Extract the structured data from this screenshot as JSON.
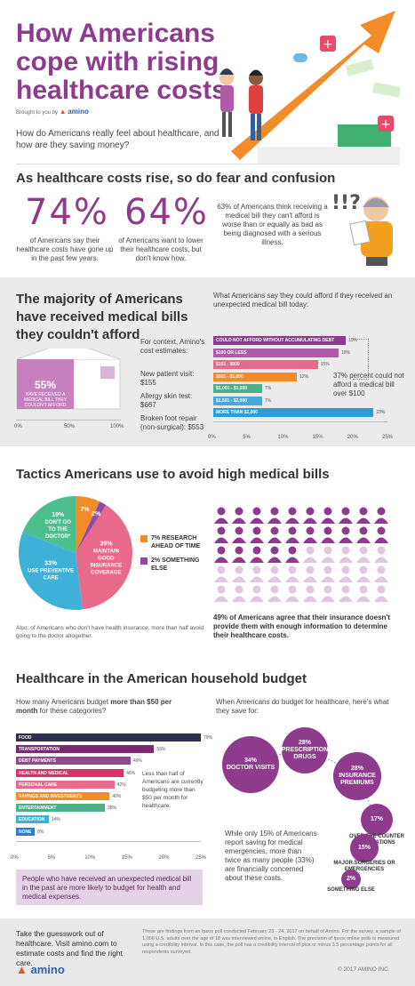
{
  "header": {
    "title": "How Americans cope with rising healthcare costs",
    "brought": "Brought to you by",
    "brand": "amino",
    "intro": "How do Americans really feel about healthcare, and how are they saving money?"
  },
  "section1": {
    "title": "As healthcare costs rise, so do fear and confusion",
    "stat1_value": "74%",
    "stat1_text": "of Americans say their healthcare costs have gone up in the past few years.",
    "stat2_value": "64%",
    "stat2_text": "of Americans want to lower their healthcare costs, but don't know how.",
    "stat3_text": "63% of Americans think receiving a medical bill they can't afford is worse than or equally as bad as being diagnosed with a serious illness."
  },
  "section2": {
    "title": "The majority of Americans have received medical bills they couldn't afford",
    "envelope_pct": "55%",
    "envelope_text": "HAVE RECEIVED A MEDICAL BILL THEY COULDN'T AFFORD",
    "env_ticks": [
      "0%",
      "50%",
      "100%"
    ],
    "context_title": "For context, Amino's cost estimates:",
    "cost1": "New patient visit: $155",
    "cost2": "Allergy skin test: $667",
    "cost3": "Broken foot repair (non-surgical): $553",
    "chart_title": "What Americans say they could afford if they received an unexpected medical bill today:",
    "callout": "37% percent could not afford a medical bill over $100"
  },
  "section3": {
    "title": "Tactics Americans use to avoid high medical bills",
    "legend1": "7% RESEARCH AHEAD OF TIME",
    "legend2": "2% SOMETHING ELSE",
    "footnote": "Also: of Americans who don't have health insurance, more than half avoid going to the doctor altogether.",
    "people_text": "49% of Americans agree that their insurance doesn't provide them with enough information to determine their healthcare costs."
  },
  "section4": {
    "title": "Healthcare in the American household budget",
    "left_title_pre": "How many Americans budget ",
    "left_title_bold": "more than $50 per month",
    "left_title_post": " for these categories?",
    "side_note": "Less than half of Americans are currently budgeting more than $50 per month for healthcare.",
    "purple_box": "People who have received an unexpected medical bill in the past are more likely to budget for health and medical expenses.",
    "right_title": "When Americans do budget for healthcare, here's what they save for:",
    "bottom_note": "While only 15% of Americans report saving for medical emergencies, more than twice as many people (33%) are financially concerned about these costs."
  },
  "footer": {
    "cta": "Take the guesswork out of healthcare. Visit amino.com to estimate costs and find the right care.",
    "brand": "amino",
    "source": "These are findings from an Ipsos poll conducted February 23 - 24, 2017 on behalf of Amino. For the survey, a sample of 1,006 U.S. adults over the age of 18 was interviewed online, in English. The precision of Ipsos online polls is measured using a credibility interval. In this case, the poll has a credibility interval of plus or minus 3.5 percentage points for all respondents surveyed.",
    "copyright": "© 2017 AMINO INC."
  },
  "chart_data": [
    {
      "type": "bar",
      "title": "What Americans say they could afford if they received an unexpected medical bill today:",
      "categories": [
        "COULD NOT AFFORD WITHOUT ACCUMULATING DEBT",
        "$100 OR LESS",
        "$101 - $500",
        "$501 - $1,000",
        "$1,001 - $1,500",
        "$1,501 - $2,000",
        "MORE THAN $2,000"
      ],
      "values": [
        19,
        18,
        15,
        12,
        7,
        7,
        23
      ],
      "colors": [
        "#8e3b8e",
        "#b05aa8",
        "#e86a8a",
        "#f28c28",
        "#4caf8a",
        "#4aa8d8",
        "#2a9ed8"
      ],
      "xticks": [
        "0%",
        "5%",
        "10%",
        "15%",
        "20%",
        "25%"
      ],
      "xlim": [
        0,
        25
      ]
    },
    {
      "type": "pie",
      "categories": [
        "MAINTAIN GOOD INSURANCE COVERAGE",
        "USE PREVENTIVE CARE",
        "DON'T GO TO THE DOCTOR*",
        "RESEARCH AHEAD OF TIME",
        "SOMETHING ELSE"
      ],
      "values": [
        39,
        33,
        19,
        7,
        2
      ],
      "labels": [
        "39%",
        "33%",
        "19%",
        "7%",
        "2%"
      ],
      "colors": [
        "#e86a8a",
        "#3fb0d8",
        "#4cbf8f",
        "#f28c28",
        "#8e4aa8"
      ]
    },
    {
      "type": "bar",
      "title": "How many Americans budget more than $50 per month for these categories?",
      "categories": [
        "FOOD",
        "TRANSPORTATION",
        "DEBT PAYMENTS",
        "HEALTH AND MEDICAL",
        "PERSONAL CARE",
        "SAVINGS AND INVESTMENTS",
        "ENTERTAINMENT",
        "EDUCATION",
        "NONE"
      ],
      "values": [
        79,
        59,
        49,
        46,
        42,
        40,
        38,
        14,
        8
      ],
      "colors": [
        "#2e2e4e",
        "#7a2d6e",
        "#8e4a8e",
        "#d6336a",
        "#e86a8a",
        "#f28c28",
        "#4caf8a",
        "#3fb0d8",
        "#2a7ec8"
      ],
      "xticks": [
        "0%",
        "5%",
        "10%",
        "15%",
        "20%",
        "25%"
      ]
    },
    {
      "type": "bubble",
      "categories": [
        "DOCTOR VISITS",
        "PRESCRIPTION DRUGS",
        "INSURANCE PREMIUMS",
        "OVER THE COUNTER MEDICATIONS",
        "MAJOR SURGERIES OR EMERGENCIES",
        "SOMETHING ELSE"
      ],
      "values": [
        34,
        28,
        28,
        17,
        15,
        2
      ],
      "labels": [
        "34%",
        "28%",
        "28%",
        "17%",
        "15%",
        "2%"
      ]
    }
  ]
}
